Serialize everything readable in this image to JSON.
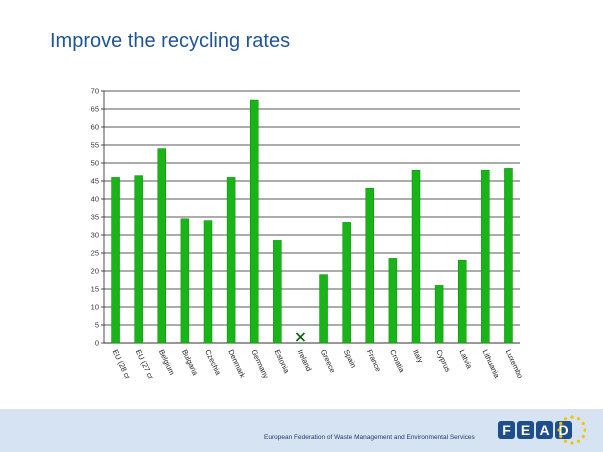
{
  "slide": {
    "title": "Improve the recycling rates",
    "footer": "European Federation of Waste Management and Environmental Services",
    "logo_text": "FEAD",
    "logo_icon": "eu-stars-logo"
  },
  "colors": {
    "bar": "#18b418",
    "bar_edge": "#0a8a0a",
    "title": "#1f5496",
    "footer_band": "#d6e3f3",
    "logo_blue": "#1f4e8c",
    "logo_star": "#f2c300"
  },
  "chart_data": {
    "type": "bar",
    "title": "",
    "xlabel": "",
    "ylabel": "",
    "ylim": [
      0,
      70
    ],
    "yticks": [
      0,
      5,
      10,
      15,
      20,
      25,
      30,
      35,
      40,
      45,
      50,
      55,
      60,
      65,
      70
    ],
    "grid": true,
    "legend": "none",
    "categories": [
      "EU (28 cr",
      "EU (27 cr",
      "Belgium",
      "Bulgaria",
      "Czechia",
      "Denmark",
      "Germany",
      "Estonia",
      "Ireland",
      "Greece",
      "Spain",
      "France",
      "Croatia",
      "Italy",
      "Cyprus",
      "Latvia",
      "Lithuania",
      "Luxembo"
    ],
    "values": [
      46,
      46.5,
      54,
      34.5,
      34,
      46,
      67.5,
      28.5,
      null,
      19,
      33.5,
      43,
      23.5,
      48,
      16,
      23,
      48,
      48.5
    ],
    "missing_marker": "x"
  }
}
